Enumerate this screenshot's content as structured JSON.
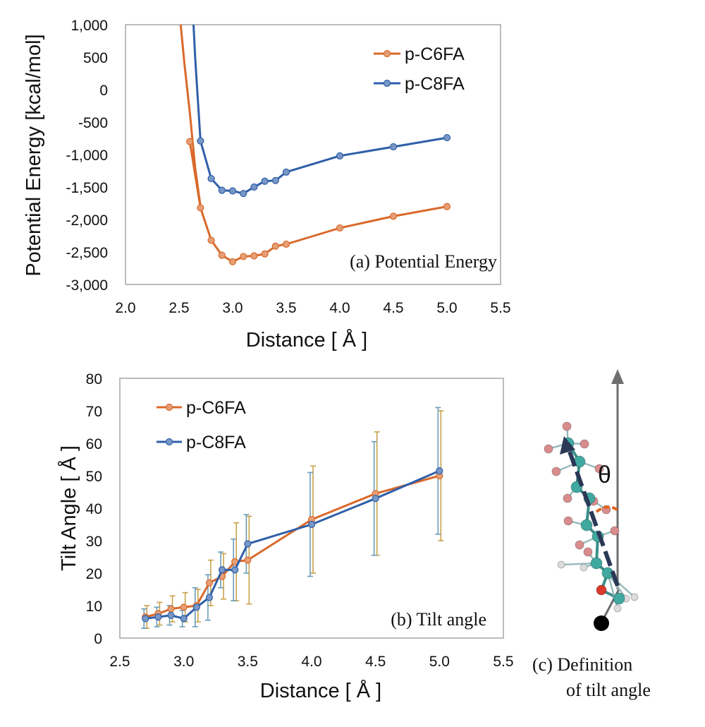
{
  "chart_data": [
    {
      "type": "line",
      "annotation": "(a) Potential Energy",
      "xlabel": "Distance [ Å ]",
      "ylabel": "Potential Energy [kcal/mol]",
      "xlim": [
        2.0,
        5.5
      ],
      "ylim": [
        -3000,
        1000
      ],
      "xticks": [
        "2.0",
        "2.5",
        "3.0",
        "3.5",
        "4.0",
        "4.5",
        "5.0",
        "5.5"
      ],
      "yticks": [
        "1,000",
        "500",
        "0",
        "-500",
        "-1,000",
        "-1,500",
        "-2,000",
        "-2,500",
        "-3,000"
      ],
      "grid": false,
      "legend_position": "top-right",
      "series": [
        {
          "name": "p-C6FA",
          "color": "#d9692b",
          "curve_x": [
            2.515,
            2.55,
            2.6,
            2.65,
            2.7
          ],
          "curve_y": [
            1000,
            400,
            -350,
            -1200,
            -1800
          ],
          "x": [
            2.6,
            2.7,
            2.8,
            2.9,
            3.0,
            3.1,
            3.2,
            3.3,
            3.4,
            3.5,
            4.0,
            4.5,
            5.0
          ],
          "y": [
            -800,
            -1820,
            -2320,
            -2550,
            -2650,
            -2570,
            -2560,
            -2530,
            -2410,
            -2380,
            -2130,
            -1950,
            -1800
          ]
        },
        {
          "name": "p-C8FA",
          "color": "#2f5fa8",
          "curve_x": [
            2.635,
            2.65,
            2.675,
            2.7
          ],
          "curve_y": [
            1000,
            500,
            -150,
            -790
          ],
          "x": [
            2.7,
            2.8,
            2.9,
            3.0,
            3.1,
            3.2,
            3.3,
            3.4,
            3.5,
            4.0,
            4.5,
            5.0
          ],
          "y": [
            -790,
            -1370,
            -1550,
            -1560,
            -1600,
            -1500,
            -1410,
            -1400,
            -1270,
            -1020,
            -880,
            -740
          ]
        }
      ]
    },
    {
      "type": "line",
      "annotation": "(b) Tilt angle",
      "xlabel": "Distance [ Å ]",
      "ylabel": "Tilt Angle [ Å ]",
      "xlim": [
        2.5,
        5.5
      ],
      "ylim": [
        0,
        80
      ],
      "xticks": [
        "2.5",
        "3.0",
        "3.5",
        "4.0",
        "4.5",
        "5.0",
        "5.5"
      ],
      "yticks": [
        "80",
        "70",
        "60",
        "50",
        "40",
        "30",
        "20",
        "10",
        "0"
      ],
      "grid": false,
      "legend_position": "top-left",
      "series": [
        {
          "name": "p-C6FA",
          "color": "#d9692b",
          "errorbar_color": "#c9a24a",
          "x": [
            2.7,
            2.8,
            2.9,
            3.0,
            3.1,
            3.2,
            3.3,
            3.4,
            3.5,
            4.0,
            4.5,
            5.0
          ],
          "y": [
            6.5,
            7.5,
            9,
            9.5,
            10,
            17,
            19,
            23.5,
            24,
            36.5,
            44.5,
            50
          ],
          "err": [
            3.5,
            3.5,
            4,
            4.5,
            5,
            7,
            7,
            12,
            13.5,
            16.5,
            19,
            20
          ]
        },
        {
          "name": "p-C8FA",
          "color": "#2f5fa8",
          "errorbar_color": "#6a9cba",
          "x": [
            2.7,
            2.8,
            2.9,
            3.0,
            3.1,
            3.2,
            3.3,
            3.4,
            3.5,
            4.0,
            4.5,
            5.0
          ],
          "y": [
            6,
            6.5,
            7,
            6,
            9.5,
            12.5,
            21,
            21,
            29,
            35,
            43,
            51.5
          ],
          "err": [
            3,
            3,
            3,
            2.5,
            6,
            7,
            5.5,
            9.5,
            9,
            16,
            17.5,
            19.5
          ]
        }
      ]
    }
  ],
  "panel_c": {
    "caption_line1": "(c) Definition",
    "caption_line2": "of tilt angle",
    "theta_label": "θ",
    "atom_colors": {
      "carbon": "#3fa9a0",
      "fluorine": "#d98c8c",
      "oxygen": "#d93a2c",
      "hydrogen": "#dcdcdc",
      "anchor": "#000000"
    },
    "axis_color": "#6e6e6e",
    "tilt_vector_color": "#2b3856",
    "angle_arc_color": "#e0651f"
  }
}
